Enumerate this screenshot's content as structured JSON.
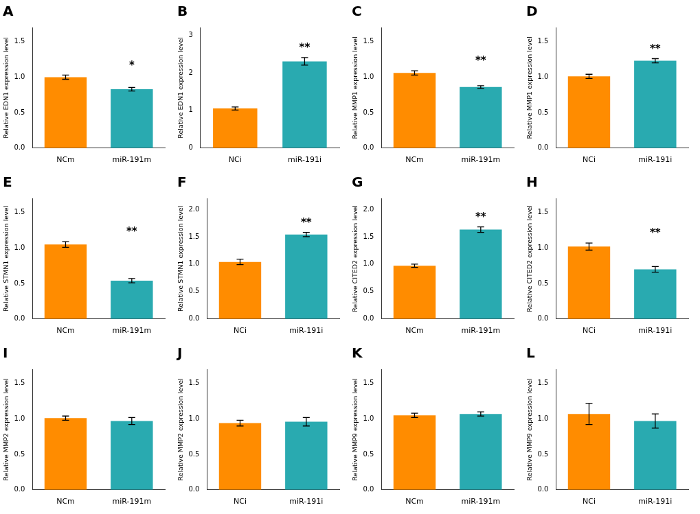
{
  "chart_data": [
    {
      "type": "bar",
      "title": "A",
      "ylabel": "Relative EDN1 expression level",
      "categories": [
        "NCm",
        "miR-191m"
      ],
      "values": [
        1.0,
        0.83
      ],
      "errors": [
        0.03,
        0.025
      ],
      "colors": [
        "#FF8C00",
        "#29AAB0"
      ],
      "ylim": [
        0,
        1.7
      ],
      "yticks": [
        {
          "value": 0,
          "label": "0.0"
        },
        0.5,
        {
          "value": 1,
          "label": "1.0"
        },
        1.5
      ],
      "grid": false,
      "annotations": [
        {
          "text": "*",
          "category": "miR-191m"
        }
      ]
    },
    {
      "type": "bar",
      "title": "B",
      "ylabel": "Relative EDN1 expression level",
      "categories": [
        "NCi",
        "miR-191i"
      ],
      "values": [
        1.05,
        2.3
      ],
      "errors": [
        0.04,
        0.1
      ],
      "colors": [
        "#FF8C00",
        "#29AAB0"
      ],
      "ylim": [
        0,
        3.2
      ],
      "yticks": [
        0,
        1,
        2,
        3
      ],
      "grid": false,
      "annotations": [
        {
          "text": "**",
          "category": "miR-191i"
        }
      ]
    },
    {
      "type": "bar",
      "title": "C",
      "ylabel": "Relative MMP1 expression level",
      "categories": [
        "NCm",
        "miR-191m"
      ],
      "values": [
        1.06,
        0.86
      ],
      "errors": [
        0.03,
        0.02
      ],
      "colors": [
        "#FF8C00",
        "#29AAB0"
      ],
      "ylim": [
        0,
        1.7
      ],
      "yticks": [
        {
          "value": 0,
          "label": "0.0"
        },
        0.5,
        {
          "value": 1,
          "label": "1.0"
        },
        1.5
      ],
      "grid": false,
      "annotations": [
        {
          "text": "**",
          "category": "miR-191m"
        }
      ]
    },
    {
      "type": "bar",
      "title": "D",
      "ylabel": "Relative MMP1 expression level",
      "categories": [
        "NCi",
        "miR-191i"
      ],
      "values": [
        1.01,
        1.23
      ],
      "errors": [
        0.03,
        0.03
      ],
      "colors": [
        "#FF8C00",
        "#29AAB0"
      ],
      "ylim": [
        0,
        1.7
      ],
      "yticks": [
        {
          "value": 0,
          "label": "0.0"
        },
        0.5,
        {
          "value": 1,
          "label": "1.0"
        },
        1.5
      ],
      "grid": false,
      "annotations": [
        {
          "text": "**",
          "category": "miR-191i"
        }
      ]
    },
    {
      "type": "bar",
      "title": "E",
      "ylabel": "Relative STMN1 expression level",
      "categories": [
        "NCm",
        "miR-191m"
      ],
      "values": [
        1.05,
        0.54
      ],
      "errors": [
        0.04,
        0.03
      ],
      "colors": [
        "#FF8C00",
        "#29AAB0"
      ],
      "ylim": [
        0,
        1.7
      ],
      "yticks": [
        {
          "value": 0,
          "label": "0.0"
        },
        0.5,
        {
          "value": 1,
          "label": "1.0"
        },
        1.5
      ],
      "grid": false,
      "annotations": [
        {
          "text": "**",
          "category": "miR-191m"
        }
      ]
    },
    {
      "type": "bar",
      "title": "F",
      "ylabel": "Relative STMN1 expression level",
      "categories": [
        "NCi",
        "miR-191i"
      ],
      "values": [
        1.04,
        1.54
      ],
      "errors": [
        0.05,
        0.04
      ],
      "colors": [
        "#FF8C00",
        "#29AAB0"
      ],
      "ylim": [
        0,
        2.2
      ],
      "yticks": [
        {
          "value": 0,
          "label": "0.0"
        },
        0.5,
        {
          "value": 1,
          "label": "1.0"
        },
        1.5,
        {
          "value": 2,
          "label": "2.0"
        }
      ],
      "grid": false,
      "annotations": [
        {
          "text": "**",
          "category": "miR-191i"
        }
      ]
    },
    {
      "type": "bar",
      "title": "G",
      "ylabel": "Relative CITED2 expression level",
      "categories": [
        "NCm",
        "miR-191m"
      ],
      "values": [
        0.97,
        1.63
      ],
      "errors": [
        0.03,
        0.05
      ],
      "colors": [
        "#FF8C00",
        "#29AAB0"
      ],
      "ylim": [
        0,
        2.2
      ],
      "yticks": [
        {
          "value": 0,
          "label": "0.0"
        },
        0.5,
        {
          "value": 1,
          "label": "1.0"
        },
        1.5,
        {
          "value": 2,
          "label": "2.0"
        }
      ],
      "grid": false,
      "annotations": [
        {
          "text": "**",
          "category": "miR-191m"
        }
      ]
    },
    {
      "type": "bar",
      "title": "H",
      "ylabel": "Relative CITED2 expression level",
      "categories": [
        "NCi",
        "miR-191i"
      ],
      "values": [
        1.02,
        0.7
      ],
      "errors": [
        0.05,
        0.04
      ],
      "colors": [
        "#FF8C00",
        "#29AAB0"
      ],
      "ylim": [
        0,
        1.7
      ],
      "yticks": [
        {
          "value": 0,
          "label": "0.0"
        },
        0.5,
        {
          "value": 1,
          "label": "1.0"
        },
        1.5
      ],
      "grid": false,
      "annotations": [
        {
          "text": "**",
          "category": "miR-191i"
        }
      ]
    },
    {
      "type": "bar",
      "title": "I",
      "ylabel": "Relative MMP2 expression level",
      "categories": [
        "NCm",
        "miR-191m"
      ],
      "values": [
        1.01,
        0.97
      ],
      "errors": [
        0.03,
        0.05
      ],
      "colors": [
        "#FF8C00",
        "#29AAB0"
      ],
      "ylim": [
        0,
        1.7
      ],
      "yticks": [
        {
          "value": 0,
          "label": "0.0"
        },
        0.5,
        {
          "value": 1,
          "label": "1.0"
        },
        1.5
      ],
      "grid": false
    },
    {
      "type": "bar",
      "title": "J",
      "ylabel": "Relative MMP2 expression level",
      "categories": [
        "NCi",
        "miR-191i"
      ],
      "values": [
        0.94,
        0.96
      ],
      "errors": [
        0.04,
        0.06
      ],
      "colors": [
        "#FF8C00",
        "#29AAB0"
      ],
      "ylim": [
        0,
        1.7
      ],
      "yticks": [
        {
          "value": 0,
          "label": "0.0"
        },
        0.5,
        {
          "value": 1,
          "label": "1.0"
        },
        1.5
      ],
      "grid": false
    },
    {
      "type": "bar",
      "title": "K",
      "ylabel": "Relative MMP9 expression level",
      "categories": [
        "NCm",
        "miR-191m"
      ],
      "values": [
        1.05,
        1.07
      ],
      "errors": [
        0.03,
        0.03
      ],
      "colors": [
        "#FF8C00",
        "#29AAB0"
      ],
      "ylim": [
        0,
        1.7
      ],
      "yticks": [
        {
          "value": 0,
          "label": "0.0"
        },
        0.5,
        {
          "value": 1,
          "label": "1.0"
        },
        1.5
      ],
      "grid": false
    },
    {
      "type": "bar",
      "title": "L",
      "ylabel": "Relative MMP9 expression level",
      "categories": [
        "NCi",
        "miR-191i"
      ],
      "values": [
        1.07,
        0.97
      ],
      "errors": [
        0.15,
        0.1
      ],
      "colors": [
        "#FF8C00",
        "#29AAB0"
      ],
      "ylim": [
        0,
        1.7
      ],
      "yticks": [
        {
          "value": 0,
          "label": "0.0"
        },
        0.5,
        {
          "value": 1,
          "label": "1.0"
        },
        1.5
      ],
      "grid": false
    }
  ]
}
